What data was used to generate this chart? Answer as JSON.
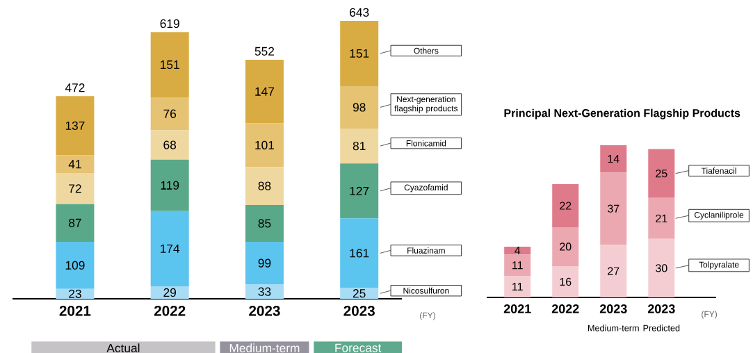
{
  "chart_data": [
    {
      "type": "bar",
      "stacked": true,
      "data_labels": true,
      "xlabel": "(FY)",
      "categories": [
        "2021",
        "2022",
        "2023",
        "2023"
      ],
      "series": [
        {
          "name": "Nicosulfuron",
          "color": "#a8dcf5",
          "values": [
            23,
            29,
            33,
            25
          ]
        },
        {
          "name": "Fluazinam",
          "color": "#5bc4ef",
          "values": [
            109,
            174,
            99,
            161
          ]
        },
        {
          "name": "Cyazofamid",
          "color": "#5aa88a",
          "values": [
            87,
            119,
            85,
            127
          ]
        },
        {
          "name": "Flonicamid",
          "color": "#efd8a0",
          "values": [
            72,
            68,
            88,
            81
          ]
        },
        {
          "name": "Next-generation flagship products",
          "color": "#e6c273",
          "values": [
            41,
            76,
            101,
            98
          ]
        },
        {
          "name": "Others",
          "color": "#d9ac43",
          "values": [
            137,
            151,
            147,
            151
          ]
        }
      ],
      "totals": [
        "472",
        "619",
        "552",
        "643"
      ],
      "annotations": [
        "Actual",
        "Medium-term",
        "Forecast"
      ]
    },
    {
      "type": "bar",
      "stacked": true,
      "data_labels": true,
      "xlabel": "(FY)",
      "title": "Principal Next-Generation Flagship Products",
      "categories": [
        "2021",
        "2022",
        "2023",
        "2023"
      ],
      "series": [
        {
          "name": "Tolpyralate",
          "color": "#f4cdd2",
          "values": [
            11,
            16,
            27,
            30
          ]
        },
        {
          "name": "Cyclaniliprole",
          "color": "#eca8b0",
          "values": [
            11,
            20,
            37,
            21
          ]
        },
        {
          "name": "Tiafenacil",
          "color": "#df7a8a",
          "values": [
            4,
            22,
            14,
            25
          ]
        }
      ],
      "annotations": [
        "Medium-term",
        "Predicted"
      ]
    }
  ]
}
